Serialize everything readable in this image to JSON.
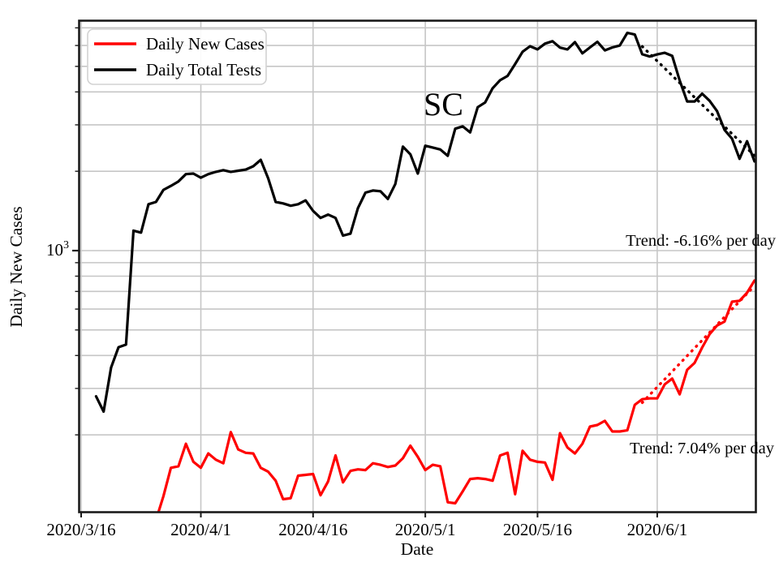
{
  "figure": {
    "background": "#ffffff",
    "spine_color": "#1a1a1a",
    "grid_color": "#c6c6c6",
    "legend_border_color": "#d2d2d2"
  },
  "chart_data": {
    "type": "line",
    "title": "",
    "xlabel": "Date",
    "ylabel": "Daily New Cases",
    "yscale": "log",
    "ylim": [
      102,
      7480
    ],
    "grid": true,
    "legend_position": "upper-left",
    "x_start_date": "2020/3/16",
    "x_end_date": "2020/6/14",
    "x_tick_labels": [
      "2020/3/16",
      "2020/4/1",
      "2020/4/16",
      "2020/5/1",
      "2020/5/16",
      "2020/6/1"
    ],
    "x_tick_day_offsets": [
      0,
      16,
      31,
      46,
      61,
      77
    ],
    "y_major_tick": {
      "mantissa": "10",
      "exponent": "3",
      "value": 1000
    },
    "y_minor_gridline_values": [
      200,
      300,
      400,
      500,
      600,
      700,
      800,
      900,
      2000,
      3000,
      4000,
      5000,
      6000,
      7000
    ],
    "annotations": {
      "state_label": "SC",
      "trend_down_label": "Trend: -6.16% per day",
      "trend_up_label": "Trend: 7.04% per day"
    },
    "series": [
      {
        "name": "Daily New Cases",
        "color": "#ff0000",
        "start_date": "2020/3/26",
        "values": [
          95,
          117,
          150,
          152,
          185,
          158,
          150,
          170,
          161,
          156,
          205,
          176,
          171,
          170,
          150,
          145,
          134,
          114,
          115,
          140,
          141,
          142,
          118,
          133,
          167,
          132,
          146,
          148,
          147,
          156,
          154,
          151,
          153,
          163,
          182,
          165,
          147,
          154,
          152,
          111,
          110,
          122,
          136,
          137,
          136,
          134,
          167,
          171,
          119,
          174,
          161,
          158,
          157,
          135,
          203,
          179,
          170,
          185,
          215,
          218,
          226,
          206,
          206,
          208,
          260,
          273,
          275,
          275,
          311,
          327,
          285,
          353,
          375,
          429,
          482,
          520,
          538,
          640,
          645,
          692,
          770
        ]
      },
      {
        "name": "Daily Total Tests",
        "color": "#000000",
        "start_date": "2020/3/18",
        "values": [
          280,
          245,
          360,
          430,
          440,
          1190,
          1170,
          1500,
          1530,
          1700,
          1760,
          1830,
          1950,
          1960,
          1890,
          1950,
          1990,
          2020,
          1990,
          2010,
          2030,
          2090,
          2210,
          1880,
          1530,
          1510,
          1480,
          1500,
          1550,
          1415,
          1330,
          1370,
          1330,
          1140,
          1160,
          1450,
          1660,
          1690,
          1680,
          1570,
          1790,
          2480,
          2320,
          1960,
          2500,
          2460,
          2420,
          2290,
          2900,
          2960,
          2810,
          3500,
          3650,
          4130,
          4430,
          4600,
          5100,
          5680,
          5960,
          5800,
          6100,
          6230,
          5890,
          5800,
          6180,
          5600,
          5900,
          6200,
          5750,
          5900,
          6000,
          6700,
          6600,
          5560,
          5450,
          5550,
          5630,
          5480,
          4420,
          3680,
          3680,
          3940,
          3700,
          3380,
          2870,
          2660,
          2230,
          2600,
          2180
        ]
      }
    ],
    "trend_lines": [
      {
        "label": "Trend: -6.16% per day",
        "rate_pct_per_day": -6.16,
        "color": "#000000",
        "start_date": "2020/5/30",
        "end_date": "2020/6/14",
        "start_value": 5950
      },
      {
        "label": "Trend: 7.04% per day",
        "rate_pct_per_day": 7.04,
        "color": "#ff0000",
        "start_date": "2020/5/30",
        "end_date": "2020/6/14",
        "start_value": 265
      }
    ]
  }
}
